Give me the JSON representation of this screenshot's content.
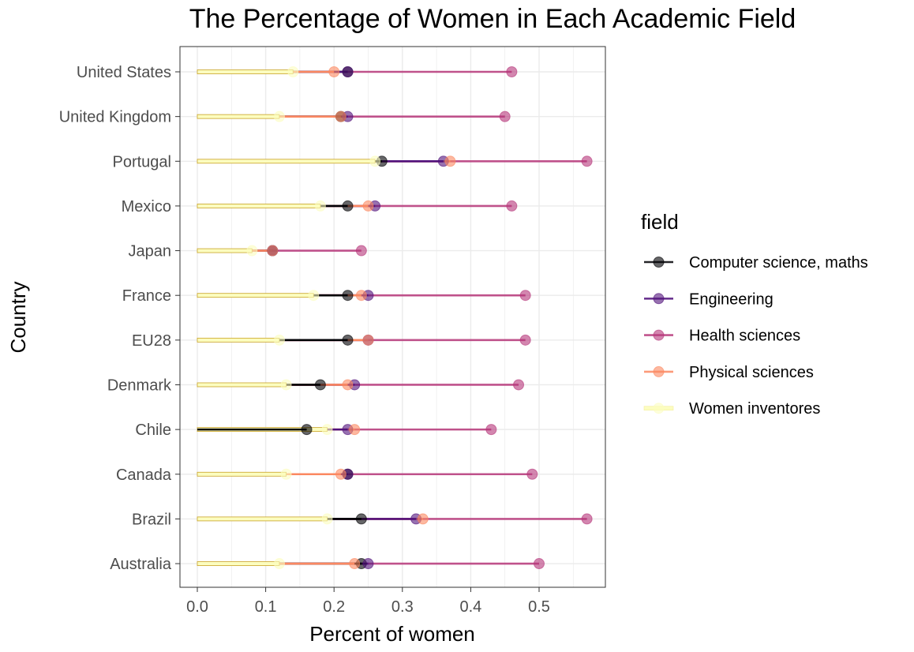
{
  "chart_data": {
    "type": "dumbbell",
    "title": "The Percentage of Women in Each Academic Field",
    "xlabel": "Percent of women",
    "ylabel": "Country",
    "xlim": [
      0,
      0.6
    ],
    "x_ticks": [
      "0.0",
      "0.1",
      "0.2",
      "0.3",
      "0.4",
      "0.5"
    ],
    "grid": true,
    "legend": {
      "title": "field",
      "position": "right"
    },
    "categories": [
      "United States",
      "United Kingdom",
      "Portugal",
      "Mexico",
      "Japan",
      "France",
      "EU28",
      "Denmark",
      "Chile",
      "Canada",
      "Brazil",
      "Australia"
    ],
    "series": [
      {
        "name": "Computer science, maths",
        "color": "#000004",
        "values": [
          0.22,
          0.21,
          0.27,
          0.22,
          0.11,
          0.22,
          0.22,
          0.18,
          0.16,
          0.22,
          0.24,
          0.24
        ]
      },
      {
        "name": "Engineering",
        "color": "#51127c",
        "values": [
          0.22,
          0.22,
          0.36,
          0.26,
          0.11,
          0.25,
          0.25,
          0.23,
          0.22,
          0.22,
          0.32,
          0.25
        ]
      },
      {
        "name": "Health sciences",
        "color": "#b63679",
        "values": [
          0.46,
          0.45,
          0.57,
          0.46,
          0.24,
          0.48,
          0.48,
          0.47,
          0.43,
          0.49,
          0.57,
          0.5
        ]
      },
      {
        "name": "Physical sciences",
        "color": "#fb8861",
        "values": [
          0.2,
          0.21,
          0.37,
          0.25,
          0.11,
          0.24,
          0.25,
          0.22,
          0.23,
          0.21,
          0.33,
          0.23
        ]
      },
      {
        "name": "Women inventores",
        "color": "#fcfdbf",
        "values": [
          0.14,
          0.12,
          0.26,
          0.18,
          0.08,
          0.17,
          0.12,
          0.13,
          0.19,
          0.13,
          0.19,
          0.12
        ]
      }
    ]
  }
}
